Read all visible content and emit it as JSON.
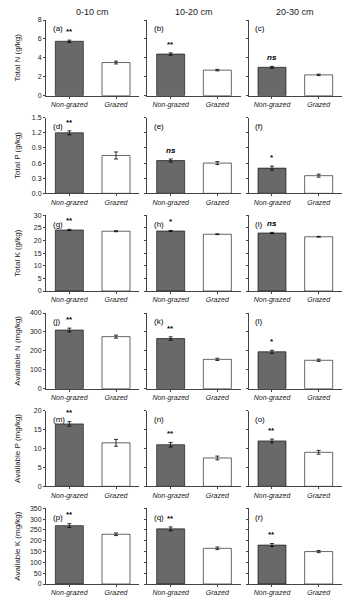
{
  "chart_data": [
    {
      "type": "bar",
      "title": "0-10 cm",
      "y_label": "Total N (g/kg)",
      "categories": [
        "Non-grazed",
        "Grazed"
      ],
      "values": [
        5.75,
        3.5
      ],
      "errors": [
        0.12,
        0.15
      ],
      "colors": [
        "#696969",
        "#ffffff"
      ],
      "ylim": [
        0,
        8
      ],
      "yticks": [
        0,
        2,
        4,
        6,
        8
      ],
      "grid": false,
      "annotations": [
        {
          "text": "(a)"
        },
        {
          "text": "**",
          "category": "Non-grazed"
        }
      ]
    },
    {
      "type": "bar",
      "title": "10-20 cm",
      "tick_labels": "x",
      "categories": [
        "Non-grazed",
        "Grazed"
      ],
      "values": [
        4.4,
        2.7
      ],
      "errors": [
        0.12,
        0.08
      ],
      "colors": [
        "#696969",
        "#ffffff"
      ],
      "ylim": [
        0,
        8
      ],
      "yticks": [
        0,
        2,
        4,
        6,
        8
      ],
      "grid": false,
      "annotations": [
        {
          "text": "(b)"
        },
        {
          "text": "**",
          "category": "Non-grazed"
        }
      ]
    },
    {
      "type": "bar",
      "title": "20-30 cm",
      "tick_labels": "x",
      "categories": [
        "Non-grazed",
        "Grazed"
      ],
      "values": [
        3.0,
        2.2
      ],
      "errors": [
        0.1,
        0.08
      ],
      "colors": [
        "#696969",
        "#ffffff"
      ],
      "ylim": [
        0,
        8
      ],
      "yticks": [
        0,
        2,
        4,
        6,
        8
      ],
      "grid": false,
      "annotations": [
        {
          "text": "(c)"
        },
        {
          "text": "ns",
          "category": "Non-grazed"
        }
      ]
    },
    {
      "type": "bar",
      "y_label": "Total P (g/kg)",
      "categories": [
        "Non-grazed",
        "Grazed"
      ],
      "values": [
        1.2,
        0.75
      ],
      "errors": [
        0.04,
        0.07
      ],
      "colors": [
        "#696969",
        "#ffffff"
      ],
      "ylim": [
        0,
        1.5
      ],
      "yticks": [
        {
          "value": 0,
          "label": "0.0"
        },
        0.3,
        0.6,
        0.9,
        1.2,
        1.5
      ],
      "grid": false,
      "annotations": [
        {
          "text": "(d)"
        },
        {
          "text": "**",
          "category": "Non-grazed"
        }
      ]
    },
    {
      "type": "bar",
      "tick_labels": "x",
      "categories": [
        "Non-grazed",
        "Grazed"
      ],
      "values": [
        0.65,
        0.6
      ],
      "errors": [
        0.03,
        0.03
      ],
      "colors": [
        "#696969",
        "#ffffff"
      ],
      "ylim": [
        0,
        1.5
      ],
      "yticks": [
        {
          "value": 0,
          "label": "0.0"
        },
        0.3,
        0.6,
        0.9,
        1.2,
        1.5
      ],
      "grid": false,
      "annotations": [
        {
          "text": "(e)"
        },
        {
          "text": "ns",
          "category": "Non-grazed"
        }
      ]
    },
    {
      "type": "bar",
      "tick_labels": "x",
      "categories": [
        "Non-grazed",
        "Grazed"
      ],
      "values": [
        0.5,
        0.35
      ],
      "errors": [
        0.04,
        0.03
      ],
      "colors": [
        "#696969",
        "#ffffff"
      ],
      "ylim": [
        0,
        1.5
      ],
      "yticks": [
        {
          "value": 0,
          "label": "0.0"
        },
        0.3,
        0.6,
        0.9,
        1.2,
        1.5
      ],
      "grid": false,
      "annotations": [
        {
          "text": "(f)"
        },
        {
          "text": "*",
          "category": "Non-grazed"
        }
      ]
    },
    {
      "type": "bar",
      "y_label": "Total K (g/kg)",
      "categories": [
        "Non-grazed",
        "Grazed"
      ],
      "values": [
        24.2,
        23.7
      ],
      "errors": [
        0.25,
        0.2
      ],
      "colors": [
        "#696969",
        "#ffffff"
      ],
      "ylim": [
        0,
        30
      ],
      "yticks": [
        0,
        5,
        10,
        15,
        20,
        25,
        30
      ],
      "grid": false,
      "annotations": [
        {
          "text": "(g)"
        },
        {
          "text": "**",
          "category": "Non-grazed"
        }
      ]
    },
    {
      "type": "bar",
      "tick_labels": "x",
      "categories": [
        "Non-grazed",
        "Grazed"
      ],
      "values": [
        23.8,
        22.5
      ],
      "errors": [
        0.2,
        0.15
      ],
      "colors": [
        "#696969",
        "#ffffff"
      ],
      "ylim": [
        0,
        30
      ],
      "yticks": [
        0,
        5,
        10,
        15,
        20,
        25,
        30
      ],
      "grid": false,
      "annotations": [
        {
          "text": "(h)"
        },
        {
          "text": "*",
          "category": "Non-grazed"
        }
      ]
    },
    {
      "type": "bar",
      "tick_labels": "x",
      "categories": [
        "Non-grazed",
        "Grazed"
      ],
      "values": [
        23.0,
        21.5
      ],
      "errors": [
        0.25,
        0.15
      ],
      "colors": [
        "#696969",
        "#ffffff"
      ],
      "ylim": [
        0,
        30
      ],
      "yticks": [
        0,
        5,
        10,
        15,
        20,
        25,
        30
      ],
      "grid": false,
      "annotations": [
        {
          "text": "(i)"
        },
        {
          "text": "ns",
          "category": "Non-grazed"
        }
      ]
    },
    {
      "type": "bar",
      "y_label": "Available N (mg/kg)",
      "categories": [
        "Non-grazed",
        "Grazed"
      ],
      "values": [
        310,
        275
      ],
      "errors": [
        10,
        8
      ],
      "colors": [
        "#696969",
        "#ffffff"
      ],
      "ylim": [
        0,
        400
      ],
      "yticks": [
        0,
        100,
        200,
        300,
        400
      ],
      "grid": false,
      "annotations": [
        {
          "text": "(j)"
        },
        {
          "text": "**",
          "category": "Non-grazed"
        }
      ]
    },
    {
      "type": "bar",
      "tick_labels": "x",
      "categories": [
        "Non-grazed",
        "Grazed"
      ],
      "values": [
        265,
        155
      ],
      "errors": [
        9,
        6
      ],
      "colors": [
        "#696969",
        "#ffffff"
      ],
      "ylim": [
        0,
        400
      ],
      "yticks": [
        0,
        100,
        200,
        300,
        400
      ],
      "grid": false,
      "annotations": [
        {
          "text": "(k)"
        },
        {
          "text": "**",
          "category": "Non-grazed"
        }
      ]
    },
    {
      "type": "bar",
      "tick_labels": "x",
      "categories": [
        "Non-grazed",
        "Grazed"
      ],
      "values": [
        195,
        150
      ],
      "errors": [
        8,
        6
      ],
      "colors": [
        "#696969",
        "#ffffff"
      ],
      "ylim": [
        0,
        400
      ],
      "yticks": [
        0,
        100,
        200,
        300,
        400
      ],
      "grid": false,
      "annotations": [
        {
          "text": "(l)"
        },
        {
          "text": "*",
          "category": "Non-grazed"
        }
      ]
    },
    {
      "type": "bar",
      "y_label": "Available P (mg/kg)",
      "categories": [
        "Non-grazed",
        "Grazed"
      ],
      "values": [
        16.5,
        11.5
      ],
      "errors": [
        0.6,
        0.9
      ],
      "colors": [
        "#696969",
        "#ffffff"
      ],
      "ylim": [
        0,
        20
      ],
      "yticks": [
        0,
        5,
        10,
        15,
        20
      ],
      "grid": false,
      "annotations": [
        {
          "text": "(m)"
        },
        {
          "text": "**",
          "category": "Non-grazed"
        }
      ]
    },
    {
      "type": "bar",
      "tick_labels": "x",
      "categories": [
        "Non-grazed",
        "Grazed"
      ],
      "values": [
        11.0,
        7.5
      ],
      "errors": [
        0.6,
        0.5
      ],
      "colors": [
        "#696969",
        "#ffffff"
      ],
      "ylim": [
        0,
        20
      ],
      "yticks": [
        0,
        5,
        10,
        15,
        20
      ],
      "grid": false,
      "annotations": [
        {
          "text": "(n)"
        },
        {
          "text": "**",
          "category": "Non-grazed"
        }
      ]
    },
    {
      "type": "bar",
      "tick_labels": "x",
      "categories": [
        "Non-grazed",
        "Grazed"
      ],
      "values": [
        12.0,
        9.0
      ],
      "errors": [
        0.5,
        0.5
      ],
      "colors": [
        "#696969",
        "#ffffff"
      ],
      "ylim": [
        0,
        20
      ],
      "yticks": [
        0,
        5,
        10,
        15,
        20
      ],
      "grid": false,
      "annotations": [
        {
          "text": "(o)"
        },
        {
          "text": "**",
          "category": "Non-grazed"
        }
      ]
    },
    {
      "type": "bar",
      "y_label": "Available K (mg/kg)",
      "categories": [
        "Non-grazed",
        "Grazed"
      ],
      "values": [
        270,
        230
      ],
      "errors": [
        9,
        6
      ],
      "colors": [
        "#696969",
        "#ffffff"
      ],
      "ylim": [
        0,
        350
      ],
      "yticks": [
        0,
        50,
        100,
        150,
        200,
        250,
        300,
        350
      ],
      "grid": false,
      "annotations": [
        {
          "text": "(p)"
        },
        {
          "text": "**",
          "category": "Non-grazed"
        }
      ]
    },
    {
      "type": "bar",
      "tick_labels": "x",
      "categories": [
        "Non-grazed",
        "Grazed"
      ],
      "values": [
        255,
        165
      ],
      "errors": [
        9,
        6
      ],
      "colors": [
        "#696969",
        "#ffffff"
      ],
      "ylim": [
        0,
        350
      ],
      "yticks": [
        0,
        50,
        100,
        150,
        200,
        250,
        300,
        350
      ],
      "grid": false,
      "annotations": [
        {
          "text": "(q)"
        },
        {
          "text": "**",
          "category": "Non-grazed"
        }
      ]
    },
    {
      "type": "bar",
      "tick_labels": "x",
      "categories": [
        "Non-grazed",
        "Grazed"
      ],
      "values": [
        180,
        150
      ],
      "errors": [
        7,
        5
      ],
      "colors": [
        "#696969",
        "#ffffff"
      ],
      "ylim": [
        0,
        350
      ],
      "yticks": [
        0,
        50,
        100,
        150,
        200,
        250,
        300,
        350
      ],
      "grid": false,
      "annotations": [
        {
          "text": "(r)"
        },
        {
          "text": "**",
          "category": "Non-grazed"
        }
      ]
    }
  ]
}
